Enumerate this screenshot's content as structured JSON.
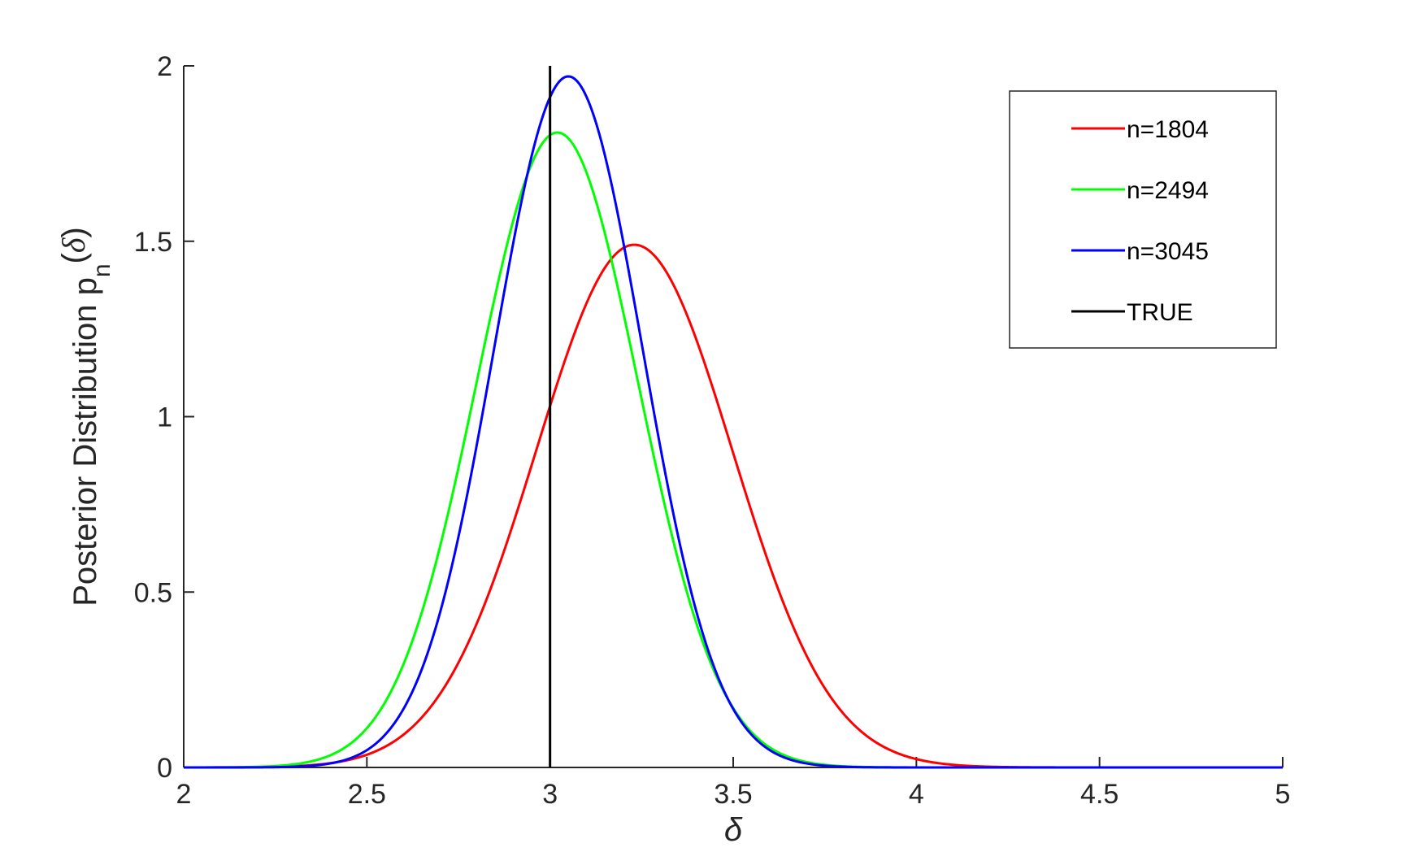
{
  "chart_data": {
    "type": "line",
    "title": "",
    "xlabel": "δ",
    "ylabel": {
      "main": "Posterior Distribution p",
      "subscript": "n",
      "arg_open": "(",
      "arg_symbol": "δ",
      "arg_close": ")"
    },
    "xlim": [
      2,
      5
    ],
    "ylim": [
      0,
      2
    ],
    "xticks": [
      2,
      2.5,
      3,
      3.5,
      4,
      4.5,
      5
    ],
    "xtick_labels": [
      "2",
      "2.5",
      "3",
      "3.5",
      "4",
      "4.5",
      "5"
    ],
    "yticks": [
      0,
      0.5,
      1,
      1.5,
      2
    ],
    "ytick_labels": [
      "0",
      "0.5",
      "1",
      "1.5",
      "2"
    ],
    "grid": false,
    "legend_position": "top-right",
    "series": [
      {
        "name": "n=1804",
        "color": "#ff0000",
        "distribution": "normal",
        "mean": 3.23,
        "peak": 1.49
      },
      {
        "name": "n=2494",
        "color": "#00ff00",
        "distribution": "normal",
        "mean": 3.02,
        "peak": 1.81
      },
      {
        "name": "n=3045",
        "color": "#0000ff",
        "distribution": "normal",
        "mean": 3.05,
        "peak": 1.97
      }
    ],
    "reference_lines": [
      {
        "name": "TRUE",
        "color": "#000000",
        "x": 3.0
      }
    ]
  }
}
